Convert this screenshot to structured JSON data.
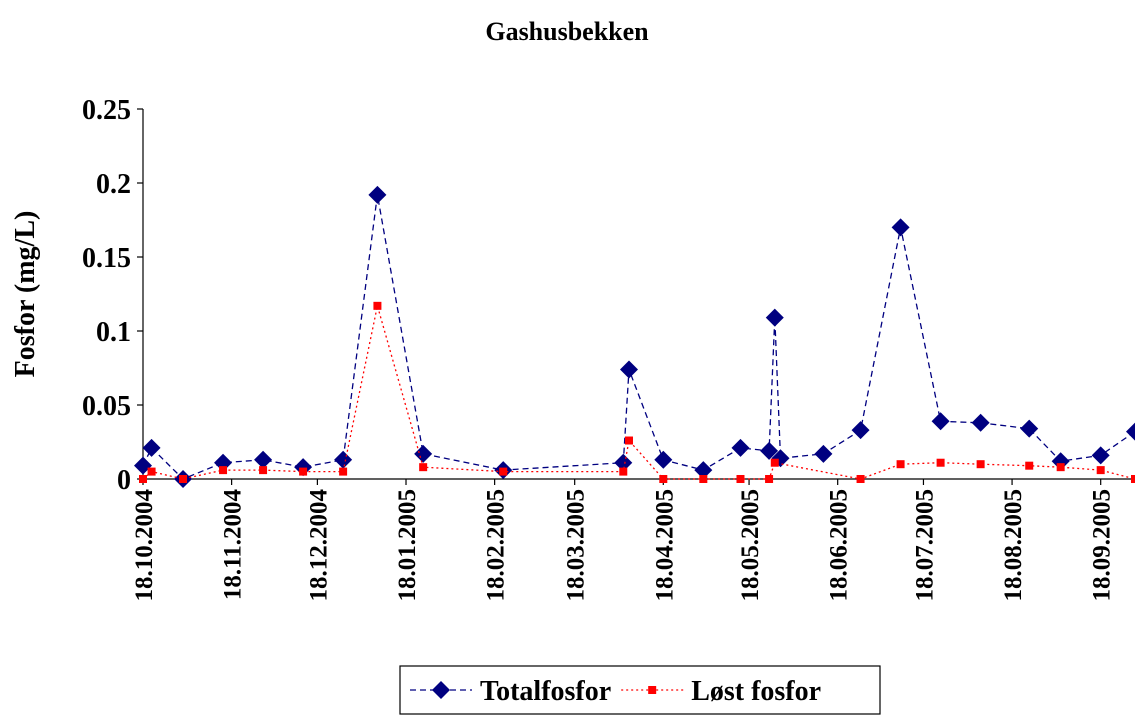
{
  "chart_data": {
    "type": "line",
    "title": "Gashusbekken",
    "y_label": "Fosfor (mg/L)",
    "xlim": [
      "18.10.2004",
      "30.09.2005"
    ],
    "xticks": [
      "18.10.2004",
      "18.11.2004",
      "18.12.2004",
      "18.01.2005",
      "18.02.2005",
      "18.03.2005",
      "18.04.2005",
      "18.05.2005",
      "18.06.2005",
      "18.07.2005",
      "18.08.2005",
      "18.09.2005"
    ],
    "ylim": [
      0,
      0.25
    ],
    "yticks": [
      0,
      0.05,
      0.1,
      0.15,
      0.2,
      0.25
    ],
    "grid": false,
    "legend": "bottom",
    "series": [
      {
        "name": "Totalfosfor",
        "color": "#000080",
        "marker": "diamond",
        "dash": "dashed",
        "x": [
          "18.10.2004",
          "21.10.2004",
          "01.11.2004",
          "15.11.2004",
          "29.11.2004",
          "13.12.2004",
          "27.12.2004",
          "08.01.2005",
          "24.01.2005",
          "21.02.2005",
          "04.04.2005",
          "06.04.2005",
          "18.04.2005",
          "02.05.2005",
          "15.05.2005",
          "25.05.2005",
          "27.05.2005",
          "29.05.2005",
          "13.06.2005",
          "26.06.2005",
          "10.07.2005",
          "24.07.2005",
          "07.08.2005",
          "24.08.2005",
          "04.09.2005",
          "18.09.2005",
          "30.09.2005"
        ],
        "values": [
          0.009,
          0.021,
          0.0,
          0.011,
          0.013,
          0.008,
          0.013,
          0.192,
          0.017,
          0.006,
          0.011,
          0.074,
          0.013,
          0.006,
          0.021,
          0.019,
          0.109,
          0.014,
          0.017,
          0.033,
          0.17,
          0.039,
          0.038,
          0.034,
          0.012,
          0.016,
          0.032
        ]
      },
      {
        "name": "Løst fosfor",
        "color": "#ff0000",
        "marker": "square",
        "dash": "dotted",
        "x": [
          "18.10.2004",
          "21.10.2004",
          "01.11.2004",
          "15.11.2004",
          "29.11.2004",
          "13.12.2004",
          "27.12.2004",
          "08.01.2005",
          "24.01.2005",
          "21.02.2005",
          "04.04.2005",
          "06.04.2005",
          "18.04.2005",
          "02.05.2005",
          "15.05.2005",
          "25.05.2005",
          "27.05.2005",
          "26.06.2005",
          "10.07.2005",
          "24.07.2005",
          "07.08.2005",
          "24.08.2005",
          "04.09.2005",
          "18.09.2005",
          "30.09.2005"
        ],
        "values": [
          0.0,
          0.005,
          0.0,
          0.006,
          0.006,
          0.005,
          0.005,
          0.117,
          0.008,
          0.005,
          0.005,
          0.026,
          0.0,
          0.0,
          0.0,
          0.0,
          0.011,
          0.0,
          0.01,
          0.011,
          0.01,
          0.009,
          0.008,
          0.006,
          0.0
        ]
      }
    ]
  }
}
